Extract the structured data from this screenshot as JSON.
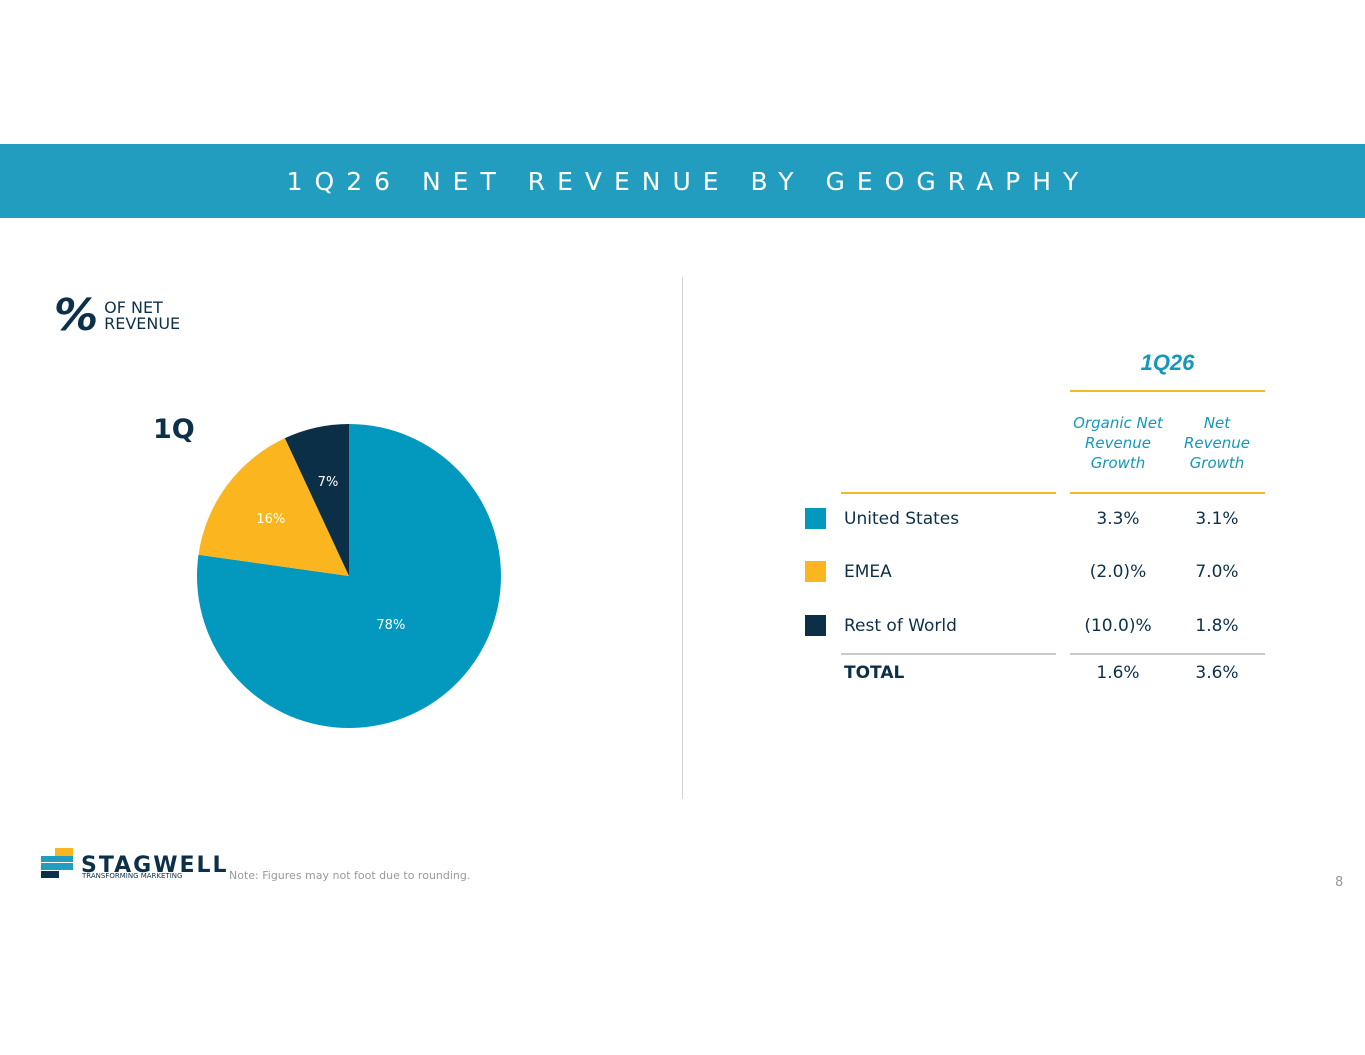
{
  "title": "1Q26 NET REVENUE BY GEOGRAPHY",
  "pie_panel": {
    "pct_sign": "%",
    "label_line1": "OF NET",
    "label_line2": "REVENUE",
    "period": "1Q"
  },
  "chart_data": {
    "type": "pie",
    "categories": [
      "United States",
      "EMEA",
      "Rest of World"
    ],
    "values": [
      78,
      16,
      7
    ],
    "labels": [
      "78%",
      "16%",
      "7%"
    ],
    "colors": [
      "#0399be",
      "#fbb61f",
      "#0c2f48"
    ]
  },
  "table": {
    "period": "1Q26",
    "col1_header": [
      "Organic Net",
      "Revenue",
      "Growth"
    ],
    "col2_header": [
      "Net",
      "Revenue",
      "Growth"
    ],
    "rows": [
      {
        "name": "United States",
        "organic": "3.3%",
        "net": "3.1%",
        "color": "#0399be"
      },
      {
        "name": "EMEA",
        "organic": "(2.0)%",
        "net": "7.0%",
        "color": "#fbb61f"
      },
      {
        "name": "Rest of World",
        "organic": "(10.0)%",
        "net": "1.8%",
        "color": "#0c2f48"
      }
    ],
    "total": {
      "name": "TOTAL",
      "organic": "1.6%",
      "net": "3.6%"
    }
  },
  "footer": {
    "logo_word": "STAGWELL",
    "logo_tagline": "TRANSFORMING MARKETING",
    "note": "Note: Figures may not foot due to rounding.",
    "page": "8"
  },
  "colors": {
    "banner": "#229dc0",
    "accent": "#1597b9",
    "gold": "#f4b924",
    "navy": "#0d3049"
  }
}
